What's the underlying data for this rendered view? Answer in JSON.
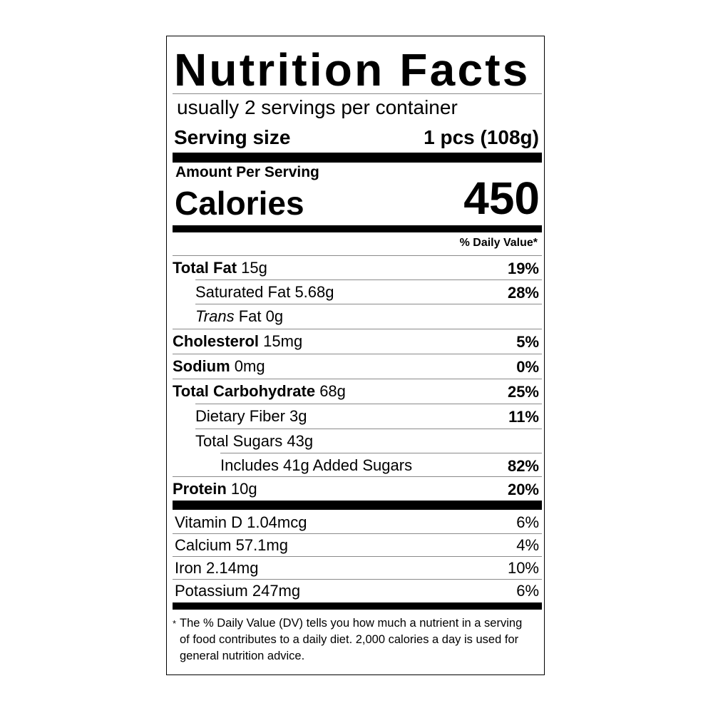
{
  "label": {
    "title": "Nutrition Facts",
    "servings_per_container": "usually 2 servings per container",
    "serving_size_label": "Serving size",
    "serving_size_value": "1 pcs (108g)",
    "amount_per_serving": "Amount Per Serving",
    "calories_label": "Calories",
    "calories_value": "450",
    "daily_value_header": "% Daily Value*",
    "nutrients": [
      {
        "name": "Total Fat",
        "amount": "15g",
        "dv": "19%"
      },
      {
        "name": "Saturated Fat",
        "amount": "5.68g",
        "dv": "28%"
      },
      {
        "name_italic": "Trans",
        "name": "Fat",
        "amount": "0g",
        "dv": ""
      },
      {
        "name": "Cholesterol",
        "amount": "15mg",
        "dv": "5%"
      },
      {
        "name": "Sodium",
        "amount": "0mg",
        "dv": "0%"
      },
      {
        "name": "Total Carbohydrate",
        "amount": "68g",
        "dv": "25%"
      },
      {
        "name": "Dietary Fiber",
        "amount": "3g",
        "dv": "11%"
      },
      {
        "name": "Total Sugars",
        "amount": "43g",
        "dv": ""
      },
      {
        "name": "Includes 41g Added Sugars",
        "amount": "",
        "dv": "82%"
      },
      {
        "name": "Protein",
        "amount": "10g",
        "dv": "20%"
      }
    ],
    "vitamins": [
      {
        "name": "Vitamin D",
        "amount": "1.04mcg",
        "dv": "6%"
      },
      {
        "name": "Calcium",
        "amount": "57.1mg",
        "dv": "4%"
      },
      {
        "name": "Iron",
        "amount": "2.14mg",
        "dv": "10%"
      },
      {
        "name": "Potassium",
        "amount": "247mg",
        "dv": "6%"
      }
    ],
    "footnote_star": "*",
    "footnote": "The % Daily Value (DV) tells you how much a nutrient in a serving of food contributes to a daily diet. 2,000 calories a day is used for general nutrition advice."
  }
}
